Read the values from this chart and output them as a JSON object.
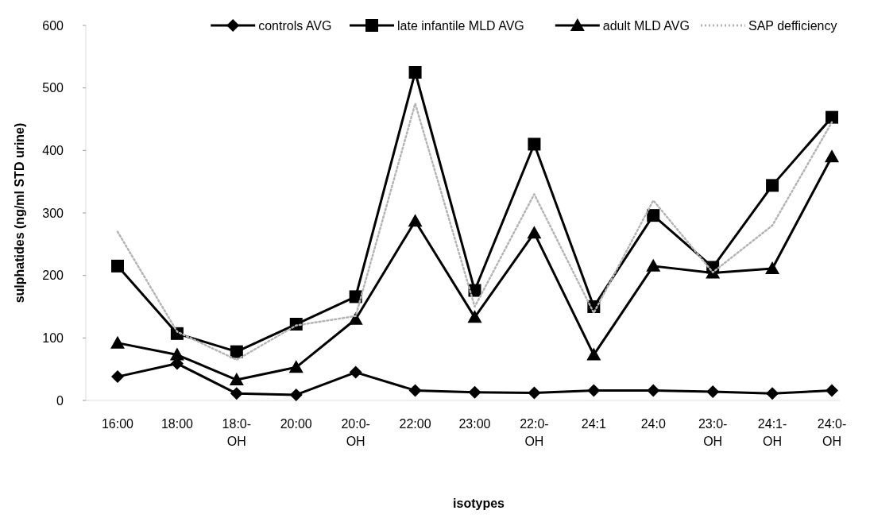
{
  "chart_data": {
    "type": "line",
    "xlabel": "isotypes",
    "ylabel": "sulphatides (ng/ml STD urine)",
    "categories": [
      "16:00",
      "18:00",
      "18:0-OH",
      "20:00",
      "20:0-OH",
      "22:00",
      "23:00",
      "22:0-OH",
      "24:1",
      "24:0",
      "23:0-OH",
      "24:1-OH",
      "24:0-OH"
    ],
    "ylim": [
      0,
      600
    ],
    "yticks": [
      0,
      100,
      200,
      300,
      400,
      500,
      600
    ],
    "legend": "top right",
    "grid": false,
    "series": [
      {
        "name": "controls AVG",
        "color": "#000000",
        "marker": "diamond",
        "line_style": "solid",
        "values": [
          38,
          59,
          11,
          9,
          45,
          16,
          13,
          12,
          16,
          16,
          14,
          11,
          16
        ]
      },
      {
        "name": "late infantile MLD AVG",
        "color": "#000000",
        "marker": "square",
        "line_style": "solid",
        "values": [
          215,
          107,
          78,
          122,
          166,
          525,
          176,
          410,
          150,
          296,
          213,
          344,
          453
        ]
      },
      {
        "name": "adult MLD AVG",
        "color": "#000000",
        "marker": "triangle",
        "line_style": "solid",
        "values": [
          92,
          73,
          33,
          53,
          130,
          287,
          133,
          268,
          73,
          215,
          204,
          211,
          390
        ]
      },
      {
        "name": "SAP defficiency",
        "color": "#b4b4b4",
        "marker": "none",
        "line_style": "dotted",
        "values": [
          270,
          110,
          65,
          120,
          135,
          475,
          150,
          330,
          140,
          320,
          205,
          280,
          445
        ]
      }
    ]
  }
}
